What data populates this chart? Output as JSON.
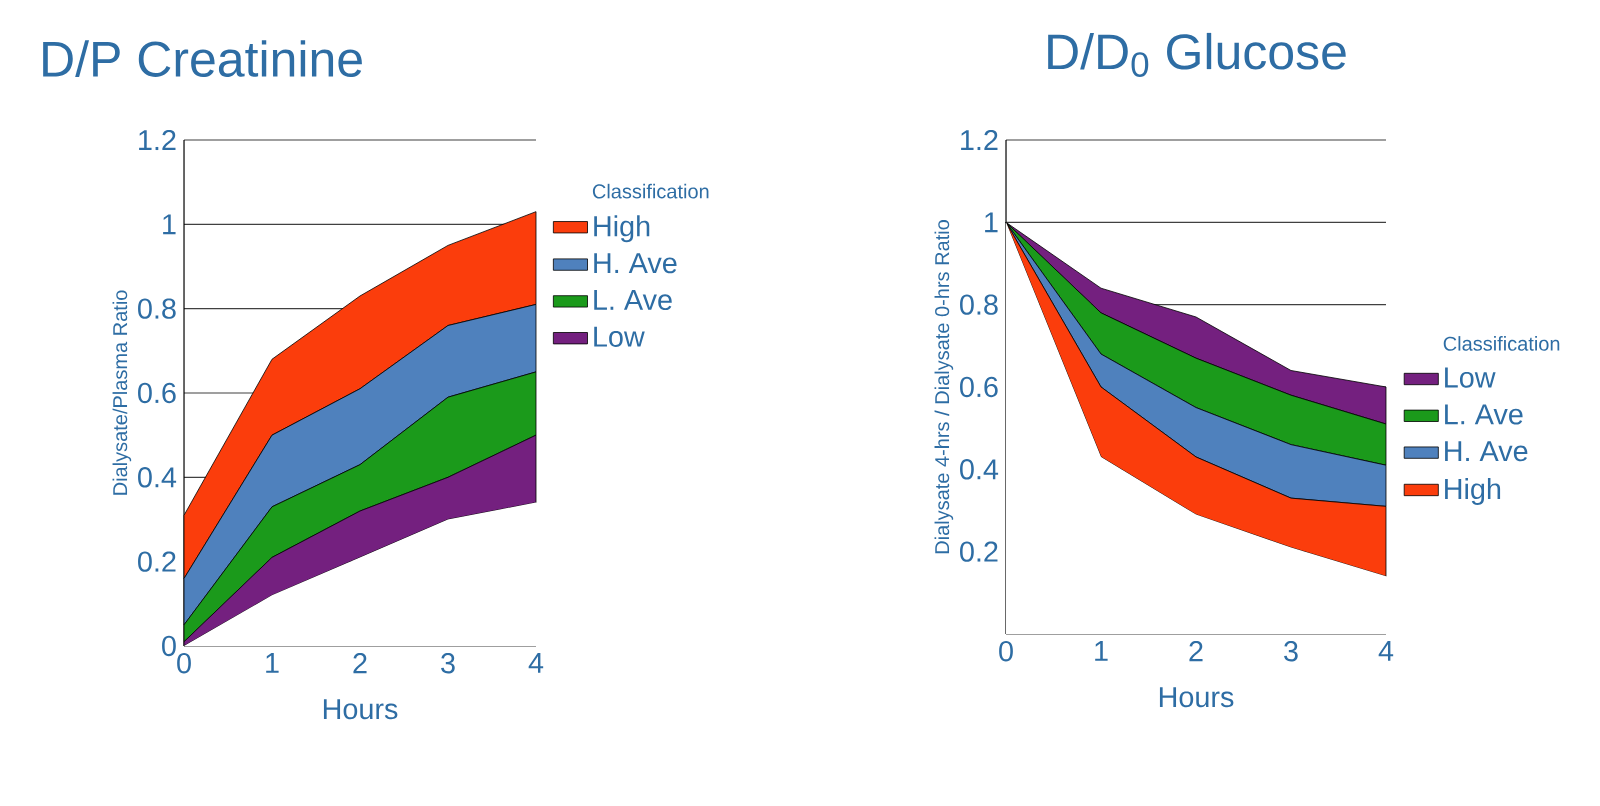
{
  "chart_data": [
    {
      "type": "area",
      "title": "D/P Creatinine",
      "xlabel": "Hours",
      "ylabel": "Dialysate/Plasma Ratio",
      "legend_title": "Classification",
      "stacked": true,
      "grid": "y",
      "legend": "right",
      "x": [
        0,
        1,
        2,
        3,
        4
      ],
      "xlim": [
        0,
        4
      ],
      "xticks": [
        0,
        1,
        2,
        3,
        4
      ],
      "ylim": [
        0,
        1.2
      ],
      "yticks": [
        0,
        0.2,
        0.4,
        0.6,
        0.8,
        1,
        1.2
      ],
      "series": [
        {
          "color": "#ffffff",
          "values": [
            0,
            0.12,
            0.21,
            0.3,
            0.34
          ]
        },
        {
          "name": "Low",
          "color": "#74207f",
          "values": [
            0.01,
            0.09,
            0.11,
            0.1,
            0.16
          ]
        },
        {
          "name": "L. Ave",
          "color": "#1b9a1b",
          "values": [
            0.04,
            0.12,
            0.11,
            0.19,
            0.15
          ]
        },
        {
          "name": "H. Ave",
          "color": "#4f81bd",
          "values": [
            0.11,
            0.17,
            0.18,
            0.17,
            0.16
          ]
        },
        {
          "name": "High",
          "color": "#fb3d0c",
          "values": [
            0.15,
            0.18,
            0.22,
            0.19,
            0.22
          ]
        }
      ]
    },
    {
      "type": "area",
      "title": "D/D$_{0}$ Glucose",
      "xlabel": "Hours",
      "ylabel": "Dialysate 4-hrs / Dialysate 0-hrs Ratio",
      "legend_title": "Classification",
      "stacked": true,
      "grid": "y",
      "legend": "right",
      "x": [
        0,
        1,
        2,
        3,
        4
      ],
      "xlim": [
        0,
        4
      ],
      "xticks": [
        0,
        1,
        2,
        3,
        4
      ],
      "ylim": [
        0,
        1.2
      ],
      "yticks": [
        {
          "value": 0,
          "label": null
        },
        0.2,
        0.4,
        0.6,
        0.8,
        1,
        1.2
      ],
      "series": [
        {
          "color": "#ffffff",
          "values": [
            1,
            0.43,
            0.29,
            0.21,
            0.14
          ]
        },
        {
          "name": "High",
          "color": "#fb3d0c",
          "values": [
            0,
            0.17,
            0.14,
            0.12,
            0.17
          ]
        },
        {
          "name": "H. Ave",
          "color": "#4f81bd",
          "values": [
            0,
            0.08,
            0.12,
            0.13,
            0.1
          ]
        },
        {
          "name": "L. Ave",
          "color": "#1b9a1b",
          "values": [
            0,
            0.1,
            0.12,
            0.12,
            0.1
          ]
        },
        {
          "name": "Low",
          "color": "#74207f",
          "values": [
            0,
            0.06,
            0.1,
            0.06,
            0.09
          ]
        }
      ]
    }
  ]
}
